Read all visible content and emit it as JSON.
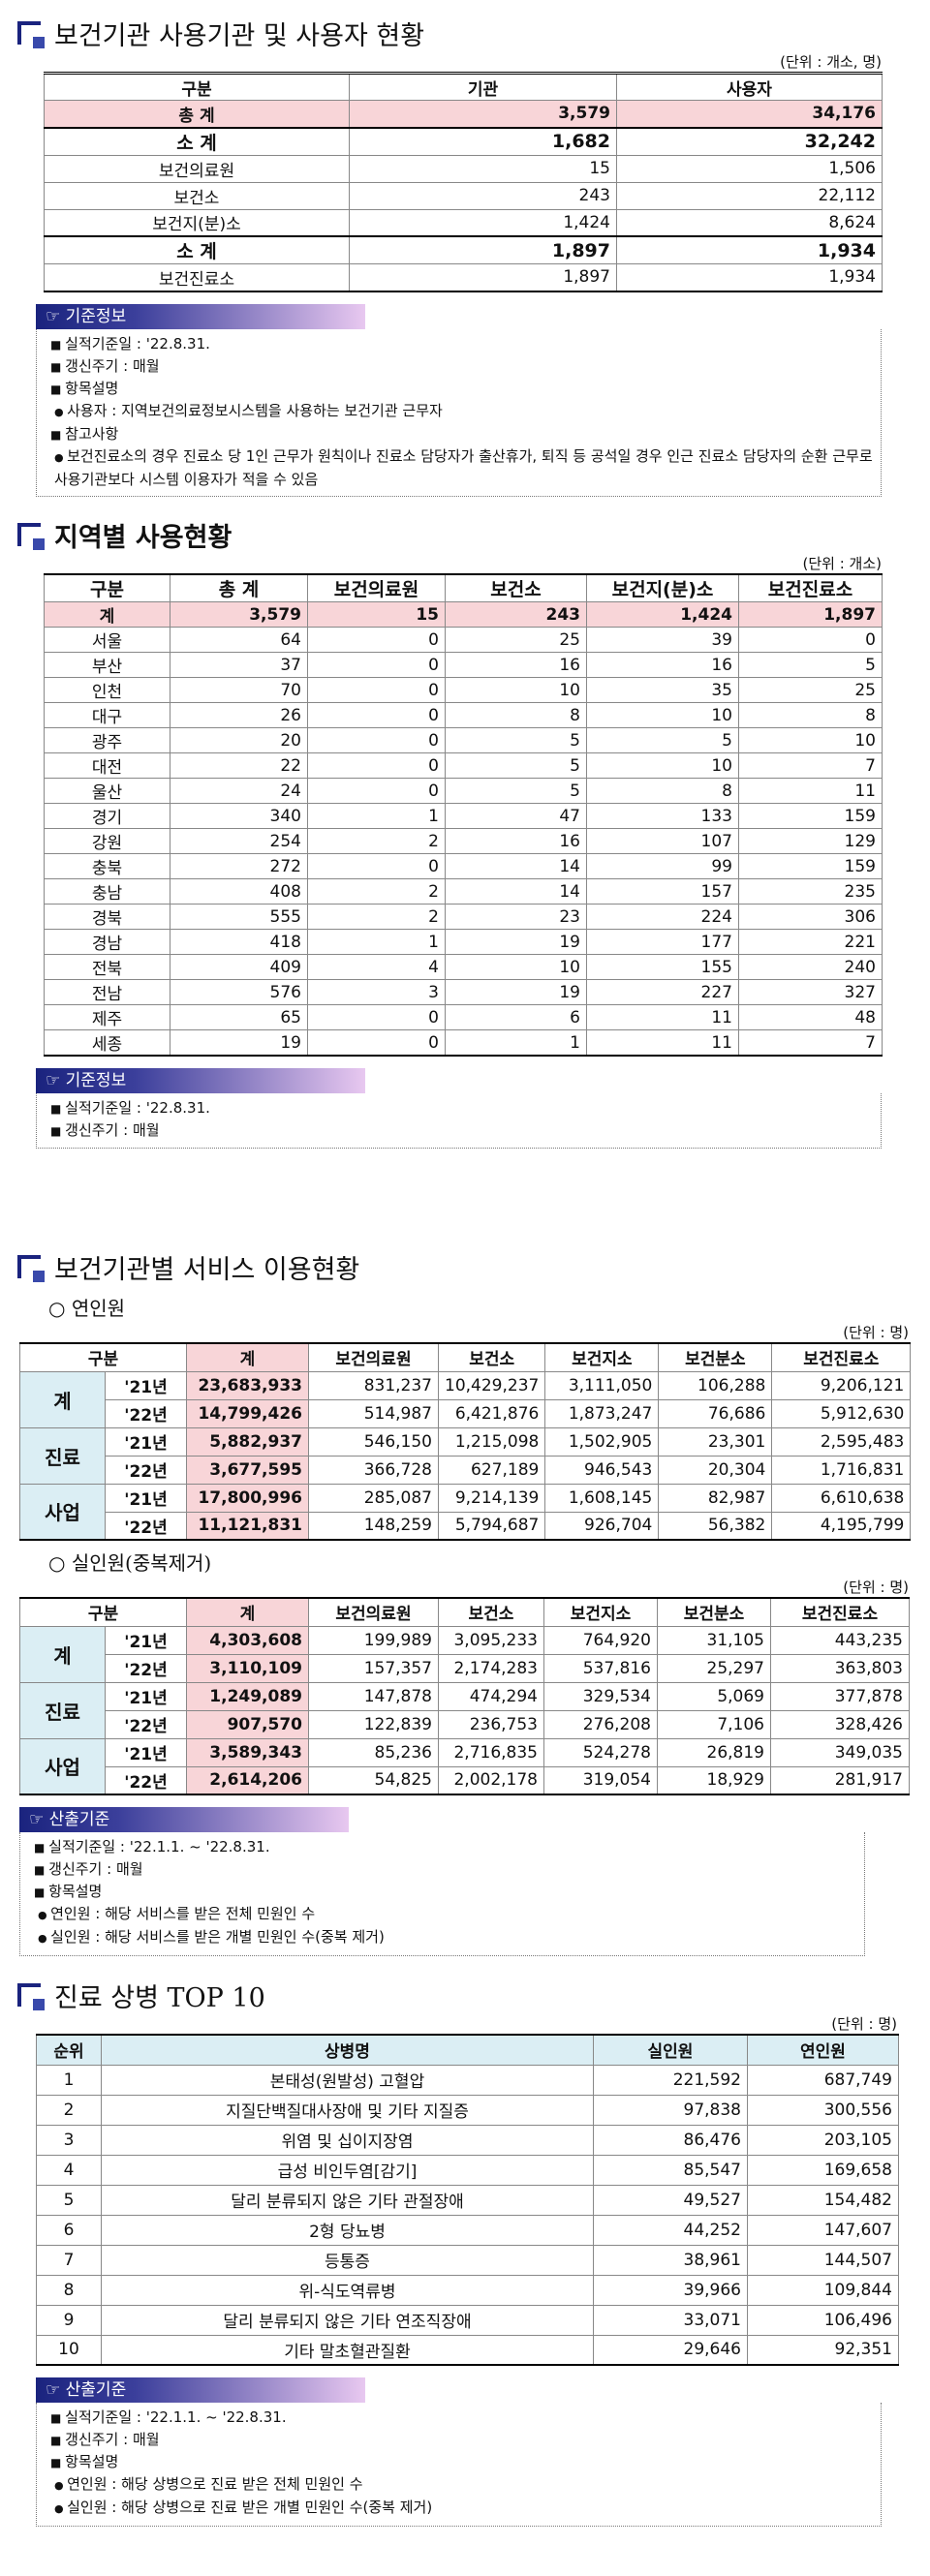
{
  "sections": [
    {
      "title": "보건기관 사용기관 및 사용자 현황",
      "unit": "(단위 : 개소, 명)",
      "table": {
        "header": [
          "구분",
          "기관",
          "사용자"
        ],
        "rows": [
          [
            "총 계",
            "3,579",
            "34,176"
          ],
          [
            "소 계",
            "1,682",
            "32,242"
          ],
          [
            "보건의료원",
            "15",
            "1,506"
          ],
          [
            "보건소",
            "243",
            "22,112"
          ],
          [
            "보건지(분)소",
            "1,424",
            "8,624"
          ],
          [
            "소 계",
            "1,897",
            "1,934"
          ],
          [
            "보건진료소",
            "1,897",
            "1,934"
          ]
        ]
      },
      "info": {
        "label": "기준정보",
        "items": [
          {
            "text": "실적기준일 : '22.8.31."
          },
          {
            "text": "갱신주기 : 매월"
          },
          {
            "text": "항목설명",
            "sub": [
              "사용자 : 지역보건의료정보시스템을 사용하는 보건기관 근무자"
            ]
          },
          {
            "text": "참고사항",
            "sub": [
              "보건진료소의 경우 진료소 당 1인 근무가 원칙이나 진료소 담당자가 출산휴가, 퇴직 등 공석일 경우 인근 진료소 담당자의 순환 근무로 사용기관보다 시스템 이용자가 적을 수 있음"
            ]
          }
        ]
      }
    },
    {
      "title": "지역별 사용현황",
      "unit": "(단위 : 개소)",
      "table": {
        "header": [
          "구분",
          "총 계",
          "보건의료원",
          "보건소",
          "보건지(분)소",
          "보건진료소"
        ],
        "rows": [
          [
            "계",
            "3,579",
            "15",
            "243",
            "1,424",
            "1,897"
          ],
          [
            "서울",
            "64",
            "0",
            "25",
            "39",
            "0"
          ],
          [
            "부산",
            "37",
            "0",
            "16",
            "16",
            "5"
          ],
          [
            "인천",
            "70",
            "0",
            "10",
            "35",
            "25"
          ],
          [
            "대구",
            "26",
            "0",
            "8",
            "10",
            "8"
          ],
          [
            "광주",
            "20",
            "0",
            "5",
            "5",
            "10"
          ],
          [
            "대전",
            "22",
            "0",
            "5",
            "10",
            "7"
          ],
          [
            "울산",
            "24",
            "0",
            "5",
            "8",
            "11"
          ],
          [
            "경기",
            "340",
            "1",
            "47",
            "133",
            "159"
          ],
          [
            "강원",
            "254",
            "2",
            "16",
            "107",
            "129"
          ],
          [
            "충북",
            "272",
            "0",
            "14",
            "99",
            "159"
          ],
          [
            "충남",
            "408",
            "2",
            "14",
            "157",
            "235"
          ],
          [
            "경북",
            "555",
            "2",
            "23",
            "224",
            "306"
          ],
          [
            "경남",
            "418",
            "1",
            "19",
            "177",
            "221"
          ],
          [
            "전북",
            "409",
            "4",
            "10",
            "155",
            "240"
          ],
          [
            "전남",
            "576",
            "3",
            "19",
            "227",
            "327"
          ],
          [
            "제주",
            "65",
            "0",
            "6",
            "11",
            "48"
          ],
          [
            "세종",
            "19",
            "0",
            "1",
            "11",
            "7"
          ]
        ]
      },
      "info": {
        "label": "기준정보",
        "items": [
          {
            "text": "실적기준일 : '22.8.31."
          },
          {
            "text": "갱신주기 : 매월"
          }
        ]
      }
    },
    {
      "title": "보건기관별 서비스 이용현황",
      "parts": [
        {
          "subtitle": "연인원",
          "unit": "(단위 : 명)",
          "table": {
            "header": [
              "구분",
              "계",
              "보건의료원",
              "보건소",
              "보건지소",
              "보건분소",
              "보건진료소"
            ],
            "groups": [
              {
                "name": "계",
                "rows": [
                  {
                    "year": "'21년",
                    "values": [
                      "23,683,933",
                      "831,237",
                      "10,429,237",
                      "3,111,050",
                      "106,288",
                      "9,206,121"
                    ]
                  },
                  {
                    "year": "'22년",
                    "values": [
                      "14,799,426",
                      "514,987",
                      "6,421,876",
                      "1,873,247",
                      "76,686",
                      "5,912,630"
                    ]
                  }
                ]
              },
              {
                "name": "진료",
                "rows": [
                  {
                    "year": "'21년",
                    "values": [
                      "5,882,937",
                      "546,150",
                      "1,215,098",
                      "1,502,905",
                      "23,301",
                      "2,595,483"
                    ]
                  },
                  {
                    "year": "'22년",
                    "values": [
                      "3,677,595",
                      "366,728",
                      "627,189",
                      "946,543",
                      "20,304",
                      "1,716,831"
                    ]
                  }
                ]
              },
              {
                "name": "사업",
                "rows": [
                  {
                    "year": "'21년",
                    "values": [
                      "17,800,996",
                      "285,087",
                      "9,214,139",
                      "1,608,145",
                      "82,987",
                      "6,610,638"
                    ]
                  },
                  {
                    "year": "'22년",
                    "values": [
                      "11,121,831",
                      "148,259",
                      "5,794,687",
                      "926,704",
                      "56,382",
                      "4,195,799"
                    ]
                  }
                ]
              }
            ]
          }
        },
        {
          "subtitle": "실인원(중복제거)",
          "unit": "(단위 : 명)",
          "table": {
            "header": [
              "구분",
              "계",
              "보건의료원",
              "보건소",
              "보건지소",
              "보건분소",
              "보건진료소"
            ],
            "groups": [
              {
                "name": "계",
                "rows": [
                  {
                    "year": "'21년",
                    "values": [
                      "4,303,608",
                      "199,989",
                      "3,095,233",
                      "764,920",
                      "31,105",
                      "443,235"
                    ]
                  },
                  {
                    "year": "'22년",
                    "values": [
                      "3,110,109",
                      "157,357",
                      "2,174,283",
                      "537,816",
                      "25,297",
                      "363,803"
                    ]
                  }
                ]
              },
              {
                "name": "진료",
                "rows": [
                  {
                    "year": "'21년",
                    "values": [
                      "1,249,089",
                      "147,878",
                      "474,294",
                      "329,534",
                      "5,069",
                      "377,878"
                    ]
                  },
                  {
                    "year": "'22년",
                    "values": [
                      "907,570",
                      "122,839",
                      "236,753",
                      "276,208",
                      "7,106",
                      "328,426"
                    ]
                  }
                ]
              },
              {
                "name": "사업",
                "rows": [
                  {
                    "year": "'21년",
                    "values": [
                      "3,589,343",
                      "85,236",
                      "2,716,835",
                      "524,278",
                      "26,819",
                      "349,035"
                    ]
                  },
                  {
                    "year": "'22년",
                    "values": [
                      "2,614,206",
                      "54,825",
                      "2,002,178",
                      "319,054",
                      "18,929",
                      "281,917"
                    ]
                  }
                ]
              }
            ]
          }
        }
      ],
      "info": {
        "label": "산출기준",
        "items": [
          {
            "text": "실적기준일 : '22.1.1. ~ '22.8.31."
          },
          {
            "text": "갱신주기 : 매월"
          },
          {
            "text": "항목설명",
            "sub": [
              "연인원 : 해당 서비스를 받은 전체 민원인 수",
              "실인원 : 해당 서비스를 받은 개별 민원인 수(중복 제거)"
            ]
          }
        ]
      }
    },
    {
      "title": "진료 상병 TOP 10",
      "unit": "(단위 : 명)",
      "table": {
        "header": [
          "순위",
          "상병명",
          "실인원",
          "연인원"
        ],
        "rows": [
          [
            "1",
            "본태성(원발성) 고혈압",
            "221,592",
            "687,749"
          ],
          [
            "2",
            "지질단백질대사장애 및 기타 지질증",
            "97,838",
            "300,556"
          ],
          [
            "3",
            "위염 및 십이지장염",
            "86,476",
            "203,105"
          ],
          [
            "4",
            "급성 비인두염[감기]",
            "85,547",
            "169,658"
          ],
          [
            "5",
            "달리 분류되지 않은 기타 관절장애",
            "49,527",
            "154,482"
          ],
          [
            "6",
            "2형 당뇨병",
            "44,252",
            "147,607"
          ],
          [
            "7",
            "등통증",
            "38,961",
            "144,507"
          ],
          [
            "8",
            "위-식도역류병",
            "39,966",
            "109,844"
          ],
          [
            "9",
            "달리 분류되지 않은 기타 연조직장애",
            "33,071",
            "106,496"
          ],
          [
            "10",
            "기타 말초혈관질환",
            "29,646",
            "92,351"
          ]
        ]
      },
      "info": {
        "label": "산출기준",
        "items": [
          {
            "text": "실적기준일 : '22.1.1. ~ '22.8.31."
          },
          {
            "text": "갱신주기 : 매월"
          },
          {
            "text": "항목설명",
            "sub": [
              "연인원 : 해당 상병으로 진료 받은 전체 민원인 수",
              "실인원 : 해당 상병으로 진료 받은 개별 민원인 수(중복 제거)"
            ]
          }
        ]
      }
    }
  ]
}
